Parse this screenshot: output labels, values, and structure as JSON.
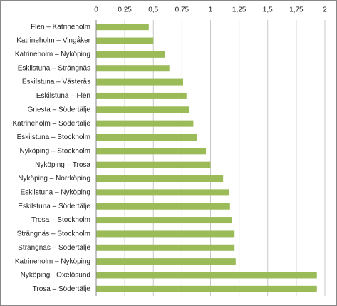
{
  "chart_data": {
    "type": "bar",
    "orientation": "horizontal",
    "color": "#9bbb59",
    "grid": true,
    "categories": [
      "Flen – Katrineholm",
      "Katrineholm – Vingåker",
      "Katrineholm – Nyköping",
      "Eskilstuna – Strängnäs",
      "Eskilstuna – Västerås",
      "Eskilstuna – Flen",
      "Gnesta – Södertälje",
      "Katrineholm – Södertälje",
      "Eskilstuna – Stockholm",
      "Nyköping – Stockholm",
      "Nyköping – Trosa",
      "Nyköping – Norrköping",
      "Eskilstuna – Nyköping",
      "Eskilstuna – Södertälje",
      "Trosa – Stockholm",
      "Strängnäs – Stockholm",
      "Strängnäs – Södertälje",
      "Katrineholm – Nyköping",
      "Nyköping - Oxelösund",
      "Trosa – Södertälje"
    ],
    "values": [
      0.46,
      0.5,
      0.6,
      0.64,
      0.76,
      0.79,
      0.81,
      0.85,
      0.88,
      0.96,
      1.0,
      1.11,
      1.16,
      1.17,
      1.19,
      1.21,
      1.21,
      1.22,
      1.93,
      1.93
    ],
    "xlim": [
      0,
      2
    ],
    "xticks": [
      0,
      {
        "value": 0.25,
        "label": "0,25"
      },
      {
        "value": 0.5,
        "label": "0,5"
      },
      {
        "value": 0.75,
        "label": "0,75"
      },
      1,
      {
        "value": 1.25,
        "label": "1,25"
      },
      {
        "value": 1.5,
        "label": "1,5"
      },
      {
        "value": 1.75,
        "label": "1,75"
      },
      2
    ]
  }
}
